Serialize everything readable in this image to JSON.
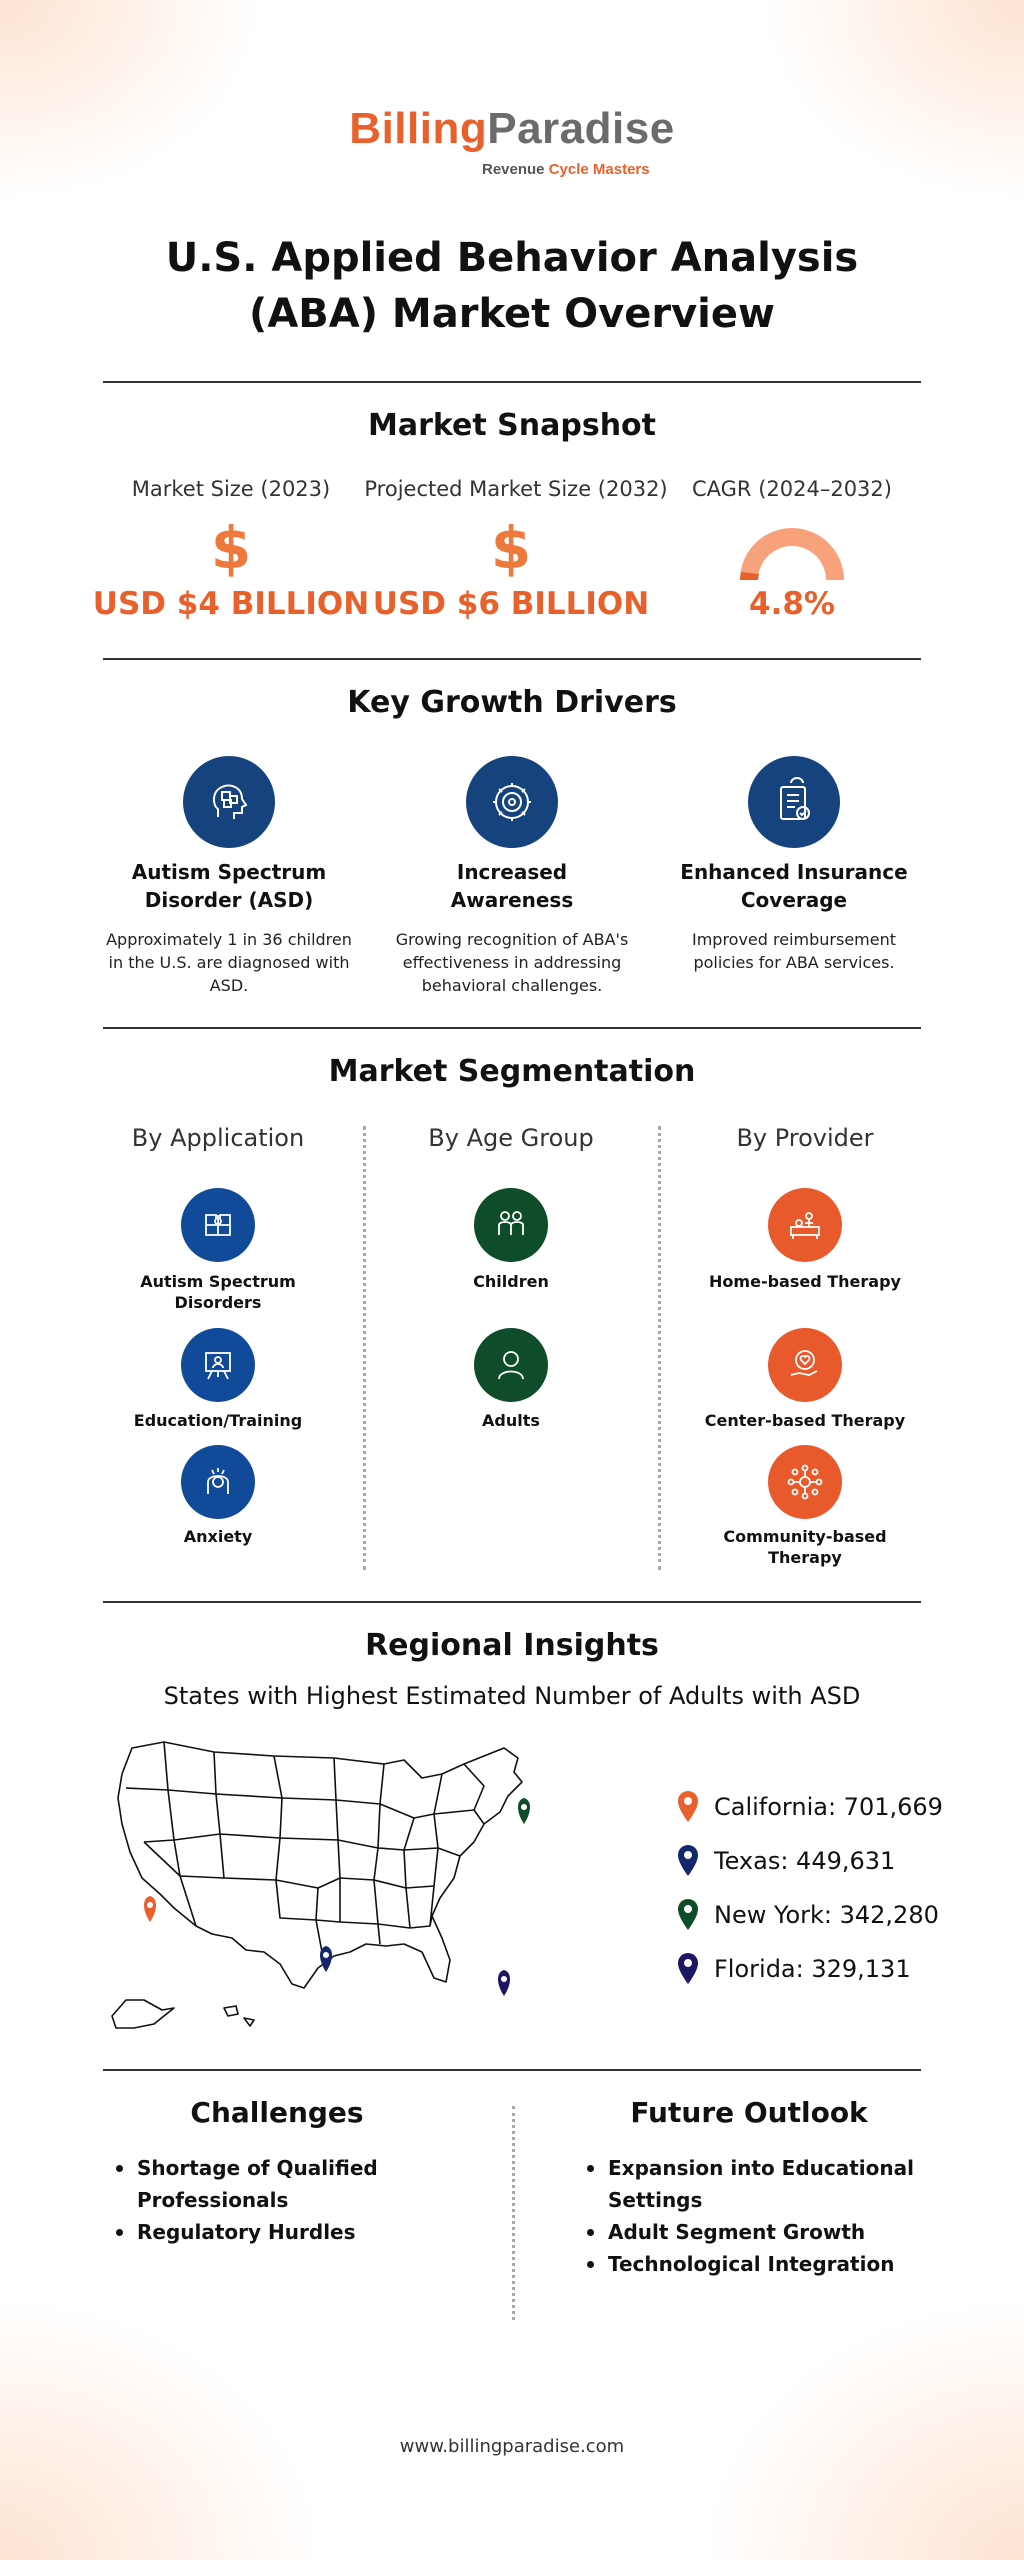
{
  "brand": {
    "name_part1": "Billing",
    "name_part2": "Paradise",
    "tagline_part1": "Revenue ",
    "tagline_part2": "Cycle Masters"
  },
  "title": {
    "line1": "U.S. Applied Behavior Analysis",
    "line2": "(ABA) Market Overview"
  },
  "snapshot": {
    "heading": "Market Snapshot",
    "items": [
      {
        "label": "Market Size (2023)",
        "value": "USD $4 BILLION",
        "icon": "dollar-icon"
      },
      {
        "label": "Projected Market Size (2032)",
        "value": "USD $6 BILLION",
        "icon": "dollar-icon"
      },
      {
        "label": "CAGR (2024–2032)",
        "value": "4.8%",
        "icon": "gauge-icon"
      }
    ],
    "dollar_glyph": "$"
  },
  "drivers": {
    "heading": "Key Growth Drivers",
    "items": [
      {
        "title_l1": "Autism Spectrum",
        "title_l2": "Disorder (ASD)",
        "desc_l1": "Approximately 1 in 36 children",
        "desc_l2": "in the U.S. are diagnosed with",
        "desc_l3": "ASD.",
        "icon": "puzzle-head-icon"
      },
      {
        "title_l1": "Increased",
        "title_l2": "Awareness",
        "desc_l1": "Growing recognition of ABA's",
        "desc_l2": "effectiveness in addressing",
        "desc_l3": "behavioral challenges.",
        "icon": "gear-head-icon"
      },
      {
        "title_l1": "Enhanced Insurance",
        "title_l2": "Coverage",
        "desc_l1": "Improved reimbursement",
        "desc_l2": "policies for ABA services.",
        "desc_l3": "",
        "icon": "insurance-document-icon"
      }
    ]
  },
  "segmentation": {
    "heading": "Market Segmentation",
    "by_application": {
      "heading": "By Application",
      "items": [
        {
          "l1": "Autism Spectrum",
          "l2": "Disorders",
          "icon": "puzzle-icon"
        },
        {
          "l1": "Education/Training",
          "l2": "",
          "icon": "presentation-board-icon"
        },
        {
          "l1": "Anxiety",
          "l2": "",
          "icon": "anxiety-icon"
        }
      ]
    },
    "by_age": {
      "heading": "By Age Group",
      "items": [
        {
          "l1": "Children",
          "l2": "",
          "icon": "children-icon"
        },
        {
          "l1": "Adults",
          "l2": "",
          "icon": "adult-icon"
        }
      ]
    },
    "by_provider": {
      "heading": "By Provider",
      "items": [
        {
          "l1": "Home-based Therapy",
          "l2": "",
          "icon": "home-therapy-icon"
        },
        {
          "l1": "Center-based Therapy",
          "l2": "",
          "icon": "hand-heart-icon"
        },
        {
          "l1": "Community-based",
          "l2": "Therapy",
          "icon": "community-network-icon"
        }
      ]
    }
  },
  "regional": {
    "heading": "Regional Insights",
    "subheading": "States with Highest Estimated Number of Adults with ASD",
    "states": [
      {
        "label": "California: 701,669",
        "color": "#e8612d"
      },
      {
        "label": "Texas: 449,631",
        "color": "#16266b"
      },
      {
        "label": "New York: 342,280",
        "color": "#0f4d2a"
      },
      {
        "label": "Florida: 329,131",
        "color": "#1d1660"
      }
    ]
  },
  "challenges": {
    "heading": "Challenges",
    "items": [
      {
        "l1": "Shortage of Qualified",
        "l2": "Professionals"
      },
      {
        "l1": "Regulatory Hurdles",
        "l2": ""
      }
    ]
  },
  "outlook": {
    "heading": "Future Outlook",
    "items": [
      {
        "l1": "Expansion into Educational",
        "l2": "Settings"
      },
      {
        "l1": "Adult Segment Growth",
        "l2": ""
      },
      {
        "l1": "Technological Integration",
        "l2": ""
      }
    ]
  },
  "footer": {
    "url": "www.billingparadise.com"
  },
  "colors": {
    "accent_orange": "#e8612d",
    "navy": "#16437e",
    "app_blue": "#124a9a",
    "age_green": "#0f4d2a"
  }
}
